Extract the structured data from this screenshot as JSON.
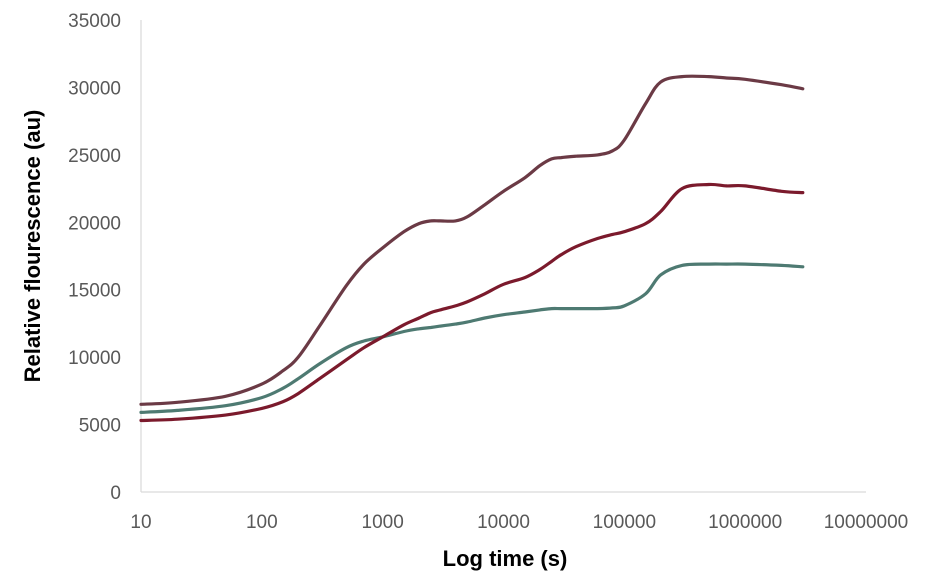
{
  "chart_data": {
    "type": "line",
    "title": "",
    "xlabel": "Log time (s)",
    "ylabel": "Relative flourescence (au)",
    "x_scale": "log",
    "xlim": [
      10,
      10000000
    ],
    "ylim": [
      0,
      35000
    ],
    "grid": false,
    "legend": "none",
    "xticks": [
      "10",
      "100",
      "1000",
      "10000",
      "100000",
      "1000000",
      "10000000"
    ],
    "yticks": [
      "0",
      "5000",
      "10000",
      "15000",
      "20000",
      "25000",
      "30000",
      "35000"
    ],
    "x": [
      10,
      20,
      50,
      100,
      150,
      200,
      300,
      500,
      700,
      1000,
      1500,
      2000,
      2500,
      3000,
      4000,
      5000,
      7000,
      10000,
      15000,
      20000,
      25000,
      30000,
      40000,
      60000,
      80000,
      100000,
      150000,
      200000,
      300000,
      500000,
      700000,
      1000000,
      2000000,
      3000000
    ],
    "series": [
      {
        "color": "#6b3a45",
        "values": [
          6500,
          6650,
          7100,
          8000,
          9000,
          10000,
          12300,
          15300,
          16900,
          18100,
          19300,
          19900,
          20100,
          20100,
          20100,
          20400,
          21300,
          22300,
          23300,
          24200,
          24700,
          24800,
          24900,
          25000,
          25300,
          26100,
          28800,
          30400,
          30800,
          30800,
          30700,
          30600,
          30200,
          29900
        ]
      },
      {
        "color": "#7b1a2c",
        "values": [
          5300,
          5400,
          5700,
          6200,
          6700,
          7300,
          8400,
          9800,
          10700,
          11500,
          12400,
          12900,
          13300,
          13500,
          13800,
          14100,
          14700,
          15400,
          15900,
          16500,
          17100,
          17600,
          18200,
          18800,
          19100,
          19300,
          19900,
          20800,
          22500,
          22800,
          22700,
          22700,
          22300,
          22200
        ]
      },
      {
        "color": "#4e7a72",
        "values": [
          5900,
          6050,
          6400,
          7000,
          7700,
          8400,
          9500,
          10700,
          11200,
          11500,
          11900,
          12100,
          12200,
          12300,
          12450,
          12600,
          12900,
          13150,
          13350,
          13500,
          13600,
          13600,
          13600,
          13600,
          13650,
          13800,
          14700,
          16100,
          16800,
          16900,
          16900,
          16900,
          16800,
          16700
        ]
      }
    ]
  }
}
